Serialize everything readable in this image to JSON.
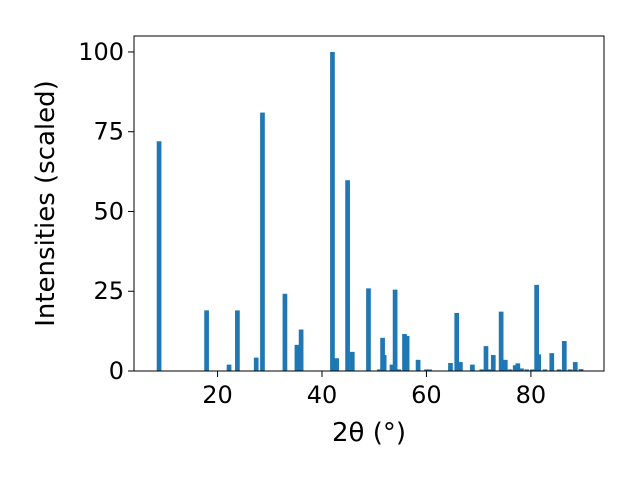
{
  "chart_data": {
    "type": "bar",
    "xlabel": "2θ (°)",
    "ylabel": "Intensities (scaled)",
    "xlim": [
      4,
      94
    ],
    "ylim": [
      0,
      105
    ],
    "xticks": [
      20,
      40,
      60,
      80
    ],
    "yticks": [
      0,
      25,
      50,
      75,
      100
    ],
    "grid": false,
    "bar_width": 0.9,
    "color": "#1f77b4",
    "x": [
      8.8,
      17.9,
      22.2,
      23.8,
      27.4,
      28.6,
      32.9,
      35.2,
      36.0,
      42.0,
      42.8,
      44.9,
      45.8,
      48.9,
      51.0,
      51.6,
      51.9,
      53.4,
      54.0,
      54.7,
      55.8,
      56.3,
      58.4,
      60.0,
      60.6,
      64.6,
      65.8,
      66.5,
      68.8,
      70.6,
      71.4,
      72.0,
      72.8,
      74.3,
      75.1,
      76.0,
      77.0,
      77.5,
      78.2,
      79.2,
      80.3,
      81.1,
      81.5,
      82.7,
      84.0,
      85.4,
      86.4,
      87.5,
      88.5,
      89.6
    ],
    "values": [
      72.0,
      19.0,
      2.0,
      19.0,
      4.2,
      81.0,
      24.2,
      8.2,
      13.0,
      100.0,
      4.0,
      59.8,
      6.0,
      25.9,
      0.5,
      10.4,
      5.0,
      2.0,
      25.5,
      0.5,
      11.6,
      11.0,
      3.5,
      0.5,
      0.5,
      2.5,
      18.2,
      2.8,
      2.0,
      0.5,
      7.8,
      0.5,
      5.0,
      18.6,
      3.5,
      0.5,
      1.8,
      2.4,
      0.8,
      0.5,
      0.5,
      27.0,
      5.2,
      0.5,
      5.6,
      0.5,
      9.4,
      0.5,
      2.8,
      0.6
    ]
  }
}
